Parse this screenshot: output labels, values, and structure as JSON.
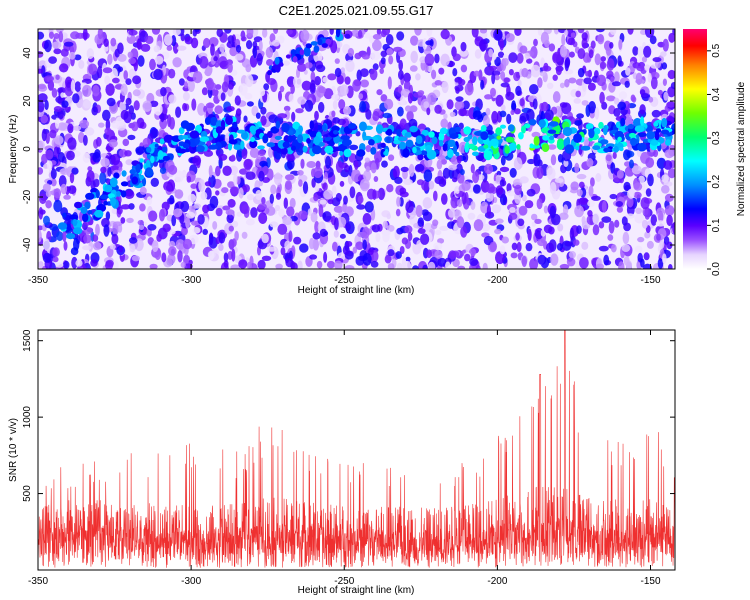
{
  "title": "C2E1.2025.021.09.55.G17",
  "chart_data": [
    {
      "type": "heatmap",
      "xlabel": "Height of straight line (km)",
      "ylabel": "Frequency (Hz)",
      "xlim": [
        -350,
        -142
      ],
      "ylim": [
        -50,
        50
      ],
      "xticks": [
        -350,
        -300,
        -250,
        -200,
        -150
      ],
      "yticks": [
        -40,
        -20,
        0,
        20,
        40
      ],
      "colorbar": {
        "label": "Normalized spectral amplitude",
        "range": [
          0,
          0.55
        ],
        "ticks": [
          0.0,
          0.1,
          0.2,
          0.3,
          0.4,
          0.5
        ],
        "colormap": [
          "#ffffff",
          "#e8d5ff",
          "#7a1cff",
          "#3a00ff",
          "#0000ff",
          "#00a0ff",
          "#00ffff",
          "#00ff60",
          "#a0ff00",
          "#ffff00",
          "#ff8000",
          "#ff0000",
          "#ff0060"
        ]
      },
      "ridge": {
        "description_points": [
          {
            "x": -341,
            "y": -32
          },
          {
            "x": -330,
            "y": -22
          },
          {
            "x": -320,
            "y": -13
          },
          {
            "x": -310,
            "y": -2
          },
          {
            "x": -302,
            "y": 5
          },
          {
            "x": -290,
            "y": 7
          },
          {
            "x": -275,
            "y": 5
          },
          {
            "x": -260,
            "y": 4
          },
          {
            "x": -240,
            "y": 4
          },
          {
            "x": -220,
            "y": 2
          },
          {
            "x": -200,
            "y": 3
          },
          {
            "x": -185,
            "y": 6
          },
          {
            "x": -170,
            "y": 5
          },
          {
            "x": -155,
            "y": 6
          },
          {
            "x": -143,
            "y": 7
          }
        ],
        "peak_amplitude": 0.35,
        "peak_x": -185
      },
      "secondary_streak": [
        {
          "x": -275,
          "y": 33
        },
        {
          "x": -260,
          "y": 43
        },
        {
          "x": -248,
          "y": 50
        }
      ]
    },
    {
      "type": "line",
      "xlabel": "Height of straight line (km)",
      "ylabel": "SNR (10 * v/v)",
      "xlim": [
        -350,
        -142
      ],
      "ylim": [
        0,
        1570
      ],
      "xticks": [
        -350,
        -300,
        -250,
        -200,
        -150
      ],
      "yticks": [
        500,
        1000,
        1500
      ],
      "color": "#ef3030",
      "envelope": [
        {
          "x": -350,
          "baseline": 300,
          "peak": 650
        },
        {
          "x": -330,
          "baseline": 310,
          "peak": 720
        },
        {
          "x": -310,
          "baseline": 290,
          "peak": 820
        },
        {
          "x": -300,
          "baseline": 280,
          "peak": 830
        },
        {
          "x": -285,
          "baseline": 290,
          "peak": 800
        },
        {
          "x": -275,
          "baseline": 320,
          "peak": 1000
        },
        {
          "x": -260,
          "baseline": 300,
          "peak": 780
        },
        {
          "x": -240,
          "baseline": 280,
          "peak": 700
        },
        {
          "x": -220,
          "baseline": 270,
          "peak": 600
        },
        {
          "x": -205,
          "baseline": 300,
          "peak": 820
        },
        {
          "x": -195,
          "baseline": 330,
          "peak": 930
        },
        {
          "x": -186,
          "baseline": 380,
          "peak": 1280
        },
        {
          "x": -178,
          "baseline": 360,
          "peak": 1570
        },
        {
          "x": -170,
          "baseline": 320,
          "peak": 900
        },
        {
          "x": -155,
          "baseline": 300,
          "peak": 820
        },
        {
          "x": -148,
          "baseline": 320,
          "peak": 1000
        },
        {
          "x": -142,
          "baseline": 310,
          "peak": 760
        }
      ]
    }
  ]
}
